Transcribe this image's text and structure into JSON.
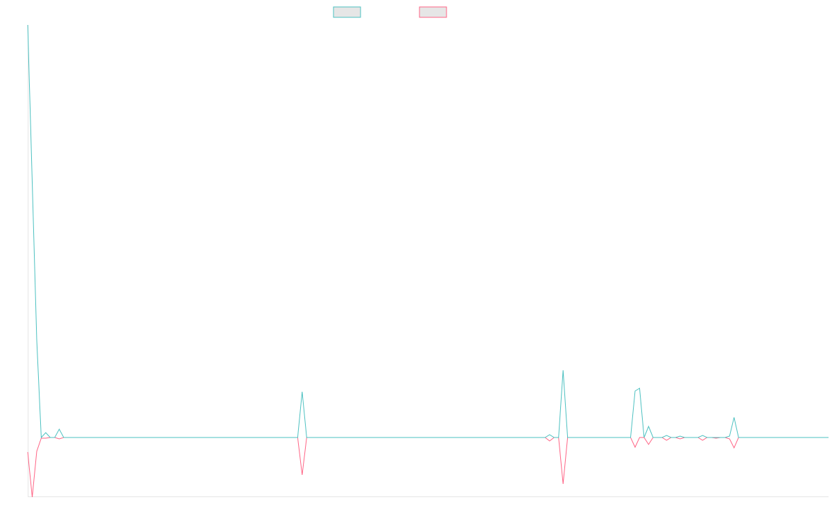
{
  "chart_data": {
    "type": "line",
    "ylim": [
      -8.5,
      59.5
    ],
    "series": [
      {
        "color": "#4bc0c0",
        "values": [
          59.5,
          36.8,
          14.1,
          0,
          0.7,
          0,
          0,
          1.2,
          0,
          0,
          0,
          0,
          0,
          0,
          0,
          0,
          0,
          0,
          0,
          0,
          0,
          0,
          0,
          0,
          0,
          0,
          0,
          0,
          0,
          0,
          0,
          0,
          0,
          0,
          0,
          0,
          0,
          0,
          0,
          0,
          0,
          0,
          0,
          0,
          0,
          0,
          0,
          0,
          0,
          0,
          0,
          0,
          0,
          0,
          0,
          0,
          0,
          0,
          0,
          0,
          0,
          6.6,
          0,
          0,
          0,
          0,
          0,
          0,
          0,
          0,
          0,
          0,
          0,
          0,
          0,
          0,
          0,
          0,
          0,
          0,
          0,
          0,
          0,
          0,
          0,
          0,
          0,
          0,
          0,
          0,
          0,
          0,
          0,
          0,
          0,
          0,
          0,
          0,
          0,
          0,
          0,
          0,
          0,
          0,
          0,
          0,
          0,
          0,
          0,
          0,
          0,
          0,
          0,
          0,
          0,
          0,
          0.4,
          0,
          0,
          9.7,
          0,
          0,
          0,
          0,
          0,
          0,
          0,
          0,
          0,
          0,
          0,
          0,
          0,
          0,
          0,
          6.7,
          7.1,
          0,
          1.6,
          0,
          0,
          0,
          0.3,
          0,
          0,
          0.2,
          0,
          0,
          0,
          0,
          0.3,
          0,
          0,
          0,
          0,
          0,
          0.2,
          2.9,
          0,
          0,
          0,
          0,
          0,
          0,
          0,
          0,
          0,
          0,
          0,
          0,
          0,
          0,
          0,
          0,
          0,
          0,
          0,
          0,
          0
        ]
      },
      {
        "color": "#ff6384",
        "values": [
          -2.1,
          -8.6,
          -2.0,
          -0.1,
          -0.1,
          0,
          0,
          -0.2,
          0,
          0,
          0,
          0,
          0,
          0,
          0,
          0,
          0,
          0,
          0,
          0,
          0,
          0,
          0,
          0,
          0,
          0,
          0,
          0,
          0,
          0,
          0,
          0,
          0,
          0,
          0,
          0,
          0,
          0,
          0,
          0,
          0,
          0,
          0,
          0,
          0,
          0,
          0,
          0,
          0,
          0,
          0,
          0,
          0,
          0,
          0,
          0,
          0,
          0,
          0,
          0,
          0,
          -5.4,
          0,
          0,
          0,
          0,
          0,
          0,
          0,
          0,
          0,
          0,
          0,
          0,
          0,
          0,
          0,
          0,
          0,
          0,
          0,
          0,
          0,
          0,
          0,
          0,
          0,
          0,
          0,
          0,
          0,
          0,
          0,
          0,
          0,
          0,
          0,
          0,
          0,
          0,
          0,
          0,
          0,
          0,
          0,
          0,
          0,
          0,
          0,
          0,
          0,
          0,
          0,
          0,
          0,
          0,
          -0.5,
          0,
          0,
          -6.7,
          0,
          0,
          0,
          0,
          0,
          0,
          0,
          0,
          0,
          0,
          0,
          0,
          0,
          0,
          0,
          -1.4,
          0,
          0,
          -1.0,
          0,
          0,
          0,
          -0.4,
          0,
          0,
          -0.2,
          0,
          0,
          0,
          0,
          -0.4,
          0,
          0,
          -0.1,
          0,
          0,
          -0.2,
          -1.5,
          0,
          0,
          0,
          0,
          0,
          0,
          0,
          0,
          0,
          0,
          0,
          0,
          0,
          0,
          0,
          0,
          0,
          0,
          0,
          0,
          0
        ]
      }
    ]
  }
}
